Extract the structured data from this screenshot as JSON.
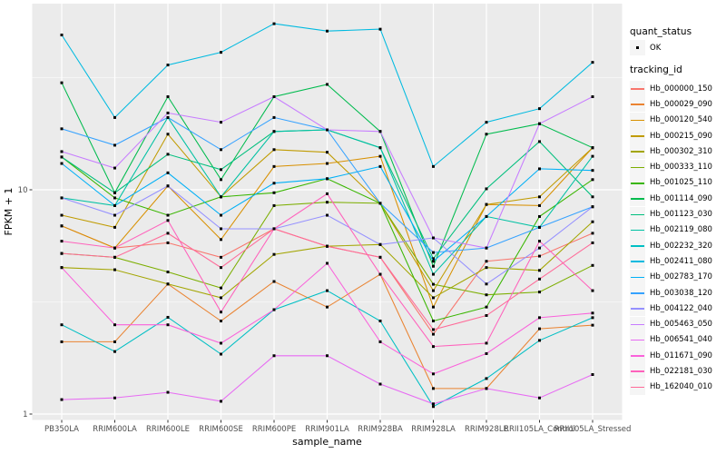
{
  "legend": {
    "quant_status_title": "quant_status",
    "ok_label": "OK",
    "tracking_title": "tracking_id"
  },
  "chart_data": {
    "type": "line",
    "title": "",
    "xlabel": "sample_name",
    "ylabel": "FPKM + 1",
    "y_scale": "log10",
    "y_ticks": [
      1,
      10
    ],
    "y_tick_labels": [
      "1",
      "10"
    ],
    "y_minor_ticks": [
      3.162,
      31.62
    ],
    "ylim": [
      1,
      66
    ],
    "grid": true,
    "legend_position": "right",
    "panel_background": "#ebebeb",
    "gridline_color": "#ffffff",
    "point_marker": "small-black-square",
    "quant_status": "OK",
    "categories": [
      "PB350LA",
      "RRIM600LA",
      "RRIM600LE",
      "RRIM600SE",
      "RRIM600PE",
      "RRIM901LA",
      "RRIM928BA",
      "RRIM928LA",
      "RRIM928LE",
      "RRII105LA_Control",
      "RRII105LA_Stressed"
    ],
    "series": [
      {
        "name": "Hb_000000_150",
        "color": "#F8766D",
        "values": [
          6.9,
          5.5,
          5.8,
          5.0,
          6.7,
          5.6,
          5.0,
          2.27,
          4.8,
          5.06,
          6.4
        ]
      },
      {
        "name": "Hb_000029_090",
        "color": "#EA8331",
        "values": [
          2.1,
          2.1,
          3.8,
          2.6,
          3.9,
          3.0,
          4.2,
          1.3,
          1.3,
          2.4,
          2.49
        ]
      },
      {
        "name": "Hb_000120_540",
        "color": "#D89000",
        "values": [
          6.9,
          5.5,
          10.4,
          6.0,
          12.7,
          13.1,
          14.1,
          3.0,
          8.6,
          8.5,
          15.4
        ]
      },
      {
        "name": "Hb_000215_090",
        "color": "#C09B00",
        "values": [
          7.7,
          6.8,
          17.7,
          9.3,
          15.1,
          14.7,
          8.7,
          3.55,
          8.6,
          9.3,
          15.4
        ]
      },
      {
        "name": "Hb_000302_310",
        "color": "#A3A500",
        "values": [
          4.5,
          4.4,
          3.8,
          3.3,
          5.15,
          5.6,
          5.7,
          3.3,
          4.5,
          4.37,
          7.2
        ]
      },
      {
        "name": "Hb_000333_110",
        "color": "#7CAE00",
        "values": [
          5.2,
          5.0,
          4.3,
          3.65,
          8.5,
          8.8,
          8.7,
          3.79,
          3.4,
          3.5,
          4.6
        ]
      },
      {
        "name": "Hb_001025_110",
        "color": "#39B600",
        "values": [
          14.0,
          9.2,
          7.7,
          9.3,
          9.7,
          11.2,
          8.7,
          2.6,
          3.0,
          7.6,
          11.1
        ]
      },
      {
        "name": "Hb_001114_090",
        "color": "#00BB4E",
        "values": [
          30,
          9.7,
          26,
          11.1,
          26,
          29.5,
          18.2,
          4.56,
          17.7,
          19.7,
          15.4
        ]
      },
      {
        "name": "Hb_001123_030",
        "color": "#00BF7D",
        "values": [
          14.0,
          9.7,
          14.4,
          12.3,
          18.2,
          18.5,
          15.4,
          4.93,
          10.1,
          16.4,
          9.3
        ]
      },
      {
        "name": "Hb_002119_080",
        "color": "#00C1A3",
        "values": [
          9.2,
          8.5,
          21,
          9.3,
          18.2,
          18.5,
          15.4,
          4.2,
          7.6,
          6.8,
          14.1
        ]
      },
      {
        "name": "Hb_002232_320",
        "color": "#00BFC4",
        "values": [
          2.5,
          1.9,
          2.7,
          1.85,
          2.92,
          3.55,
          2.6,
          1.08,
          1.44,
          2.13,
          2.69
        ]
      },
      {
        "name": "Hb_002411_080",
        "color": "#00BAE0",
        "values": [
          49,
          21,
          36,
          41,
          55,
          51,
          52,
          12.7,
          20,
          23,
          37
        ]
      },
      {
        "name": "Hb_002783_170",
        "color": "#00B0F6",
        "values": [
          13.1,
          8.5,
          11.9,
          7.7,
          10.7,
          11.2,
          12.7,
          4.8,
          7.6,
          12.4,
          12.2
        ]
      },
      {
        "name": "Hb_003038_120",
        "color": "#35A2FF",
        "values": [
          18.7,
          15.8,
          21,
          15.1,
          21,
          18.5,
          8.7,
          5.25,
          5.5,
          6.8,
          8.4
        ]
      },
      {
        "name": "Hb_004122_040",
        "color": "#9590FF",
        "values": [
          9.2,
          7.7,
          10.4,
          6.7,
          6.7,
          7.7,
          5.7,
          6.1,
          3.8,
          5.5,
          8.4
        ]
      },
      {
        "name": "Hb_005463_050",
        "color": "#C77CFF",
        "values": [
          14.8,
          12.5,
          22,
          20,
          26,
          18.5,
          18.2,
          6.1,
          5.5,
          19.7,
          26
        ]
      },
      {
        "name": "Hb_006541_040",
        "color": "#E76BF3",
        "values": [
          1.16,
          1.18,
          1.25,
          1.14,
          1.82,
          1.82,
          1.36,
          1.11,
          1.3,
          1.18,
          1.5
        ]
      },
      {
        "name": "Hb_011671_090",
        "color": "#FA62DB",
        "values": [
          4.5,
          2.5,
          2.5,
          2.07,
          2.92,
          4.7,
          2.1,
          1.51,
          1.86,
          2.69,
          2.82
        ]
      },
      {
        "name": "Hb_022181_030",
        "color": "#FF62BC",
        "values": [
          5.9,
          5.5,
          7.3,
          2.85,
          6.7,
          9.6,
          4.2,
          2.0,
          2.07,
          5.9,
          3.55
        ]
      },
      {
        "name": "Hb_162040_010",
        "color": "#FF6A98",
        "values": [
          5.2,
          5.0,
          6.4,
          4.5,
          6.7,
          5.6,
          5.0,
          2.38,
          2.75,
          4.0,
          5.8
        ]
      }
    ]
  }
}
